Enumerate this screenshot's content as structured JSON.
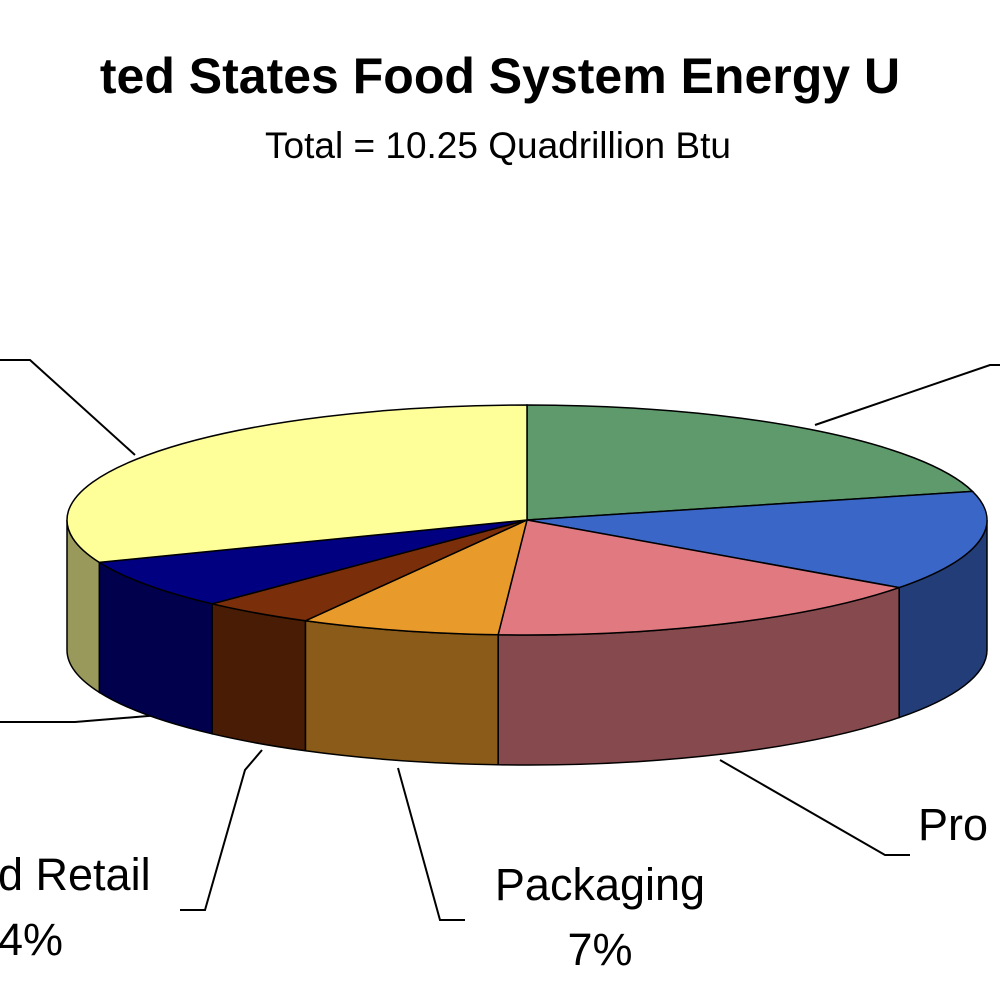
{
  "chart_data": {
    "type": "pie3d",
    "title": "ted States Food System Energy U",
    "subtitle": "Total = 10.25 Quadrillion Btu",
    "categories": [
      null,
      null,
      "Pro",
      "Packaging",
      "d Retail",
      null,
      null
    ],
    "values": [
      21,
      14,
      16,
      7,
      4,
      7,
      31
    ],
    "value_labels": [
      null,
      null,
      null,
      "7%",
      "4%",
      null,
      null
    ],
    "colors": [
      "#5f9a6c",
      "#3a66c8",
      "#e07a80",
      "#e89a2a",
      "#7a2e0a",
      "#000080",
      "#ffff9a"
    ]
  }
}
